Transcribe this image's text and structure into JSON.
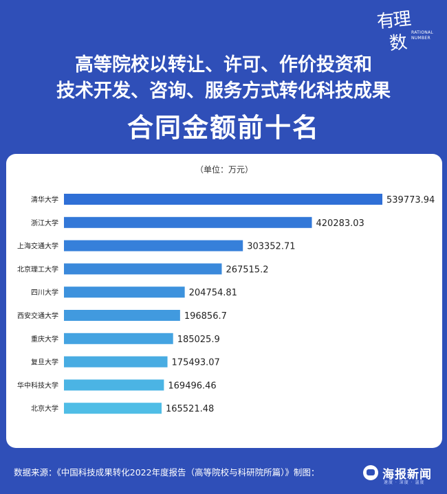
{
  "logo": {
    "cn_top": "有理",
    "cn_bottom": "数",
    "en_line1": "RATIONAL",
    "en_line2": "NUMBER"
  },
  "title_lines": [
    "高等院校以转让、许可、作价投资和",
    "技术开发、咨询、服务方式转化科技成果",
    "合同金额前十名"
  ],
  "unit": "（单位：万元）",
  "chart_data": {
    "type": "bar",
    "orientation": "horizontal",
    "title": "高等院校以转让、许可、作价投资和技术开发、咨询、服务方式转化科技成果合同金额前十名",
    "unit": "万元",
    "categories": [
      "清华大学",
      "浙江大学",
      "上海交通大学",
      "北京理工大学",
      "四川大学",
      "西安交通大学",
      "重庆大学",
      "复旦大学",
      "华中科技大学",
      "北京大学"
    ],
    "values": [
      539773.94,
      420283.03,
      303352.71,
      267515.2,
      204754.81,
      196856.7,
      185025.9,
      175493.07,
      169496.46,
      165521.48
    ],
    "value_labels": [
      "539773.94",
      "420283.03",
      "303352.71",
      "267515.2",
      "204754.81",
      "196856.7",
      "185025.9",
      "175493.07",
      "169496.46",
      "165521.48"
    ],
    "xlim": [
      0,
      539773.94
    ],
    "grid": false,
    "colors": {
      "start": "#2f6fd6",
      "end": "#4fbde6"
    }
  },
  "footer": {
    "source": "数据来源：《中国科技成果转化2022年度报告（高等院校与科研院所篇）》制图："
  },
  "brand": {
    "name": "海报新闻",
    "sub": "速度 · 深度 · 温度"
  }
}
